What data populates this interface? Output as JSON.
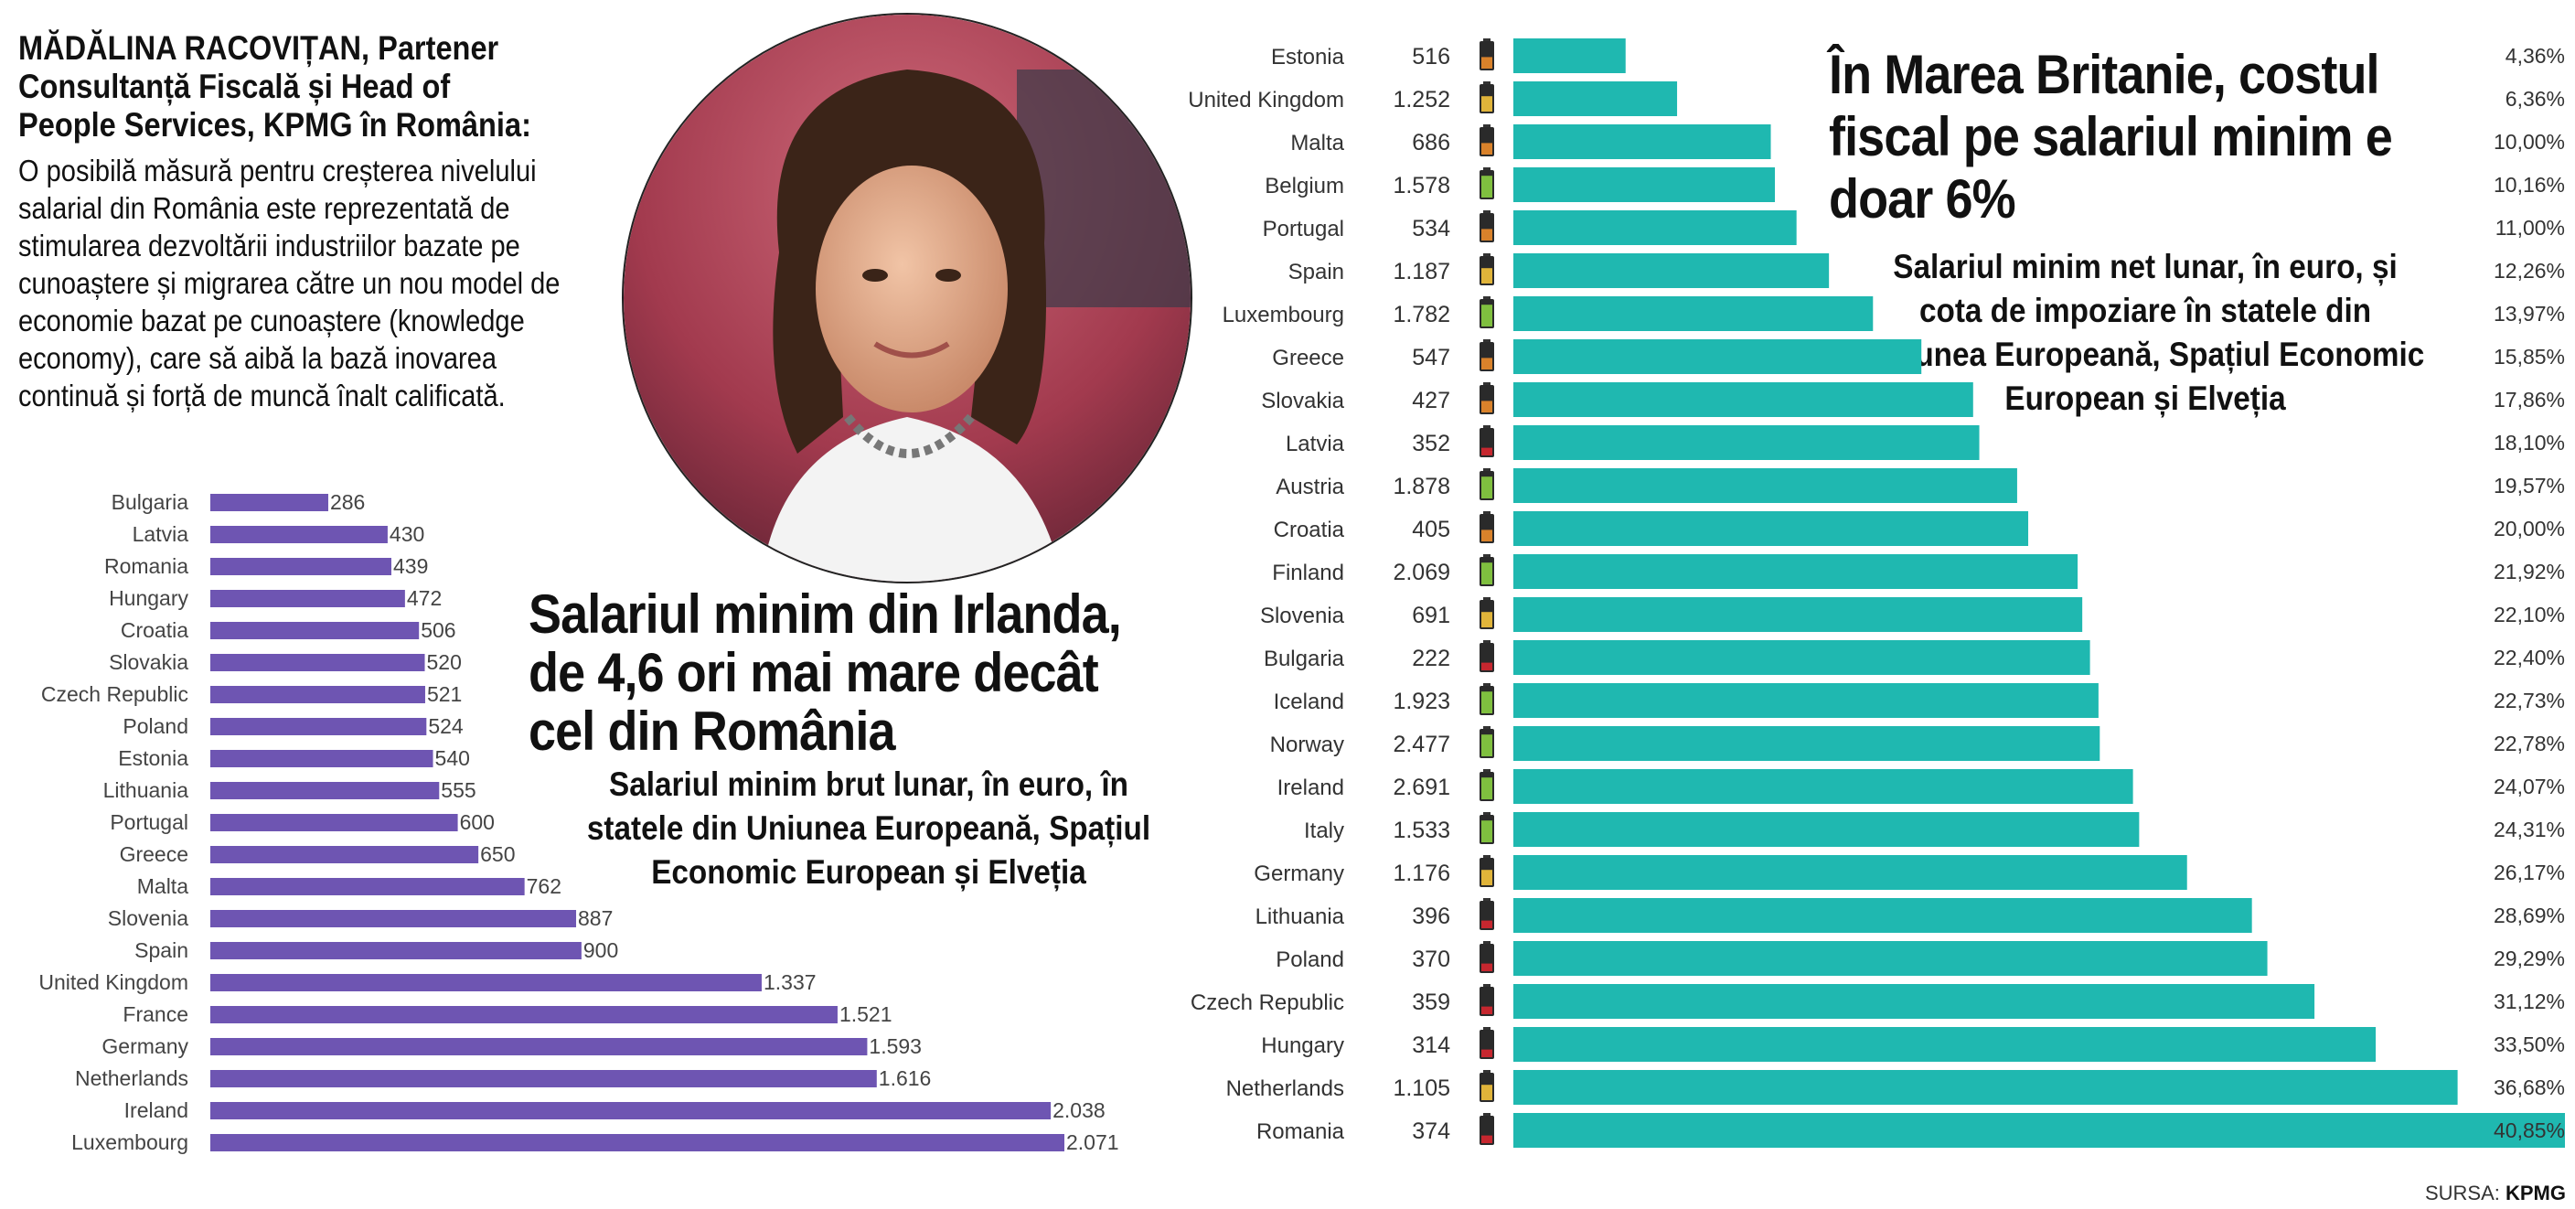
{
  "quote": {
    "author": "MĂDĂLINA RACOVIȚAN, Partener Consultanță Fiscală și Head of People Services, KPMG în România:",
    "text": "O posibilă măsură pentru creșterea nivelului salarial din România este reprezentată de stimularea dezvoltării industriilor bazate pe cunoaștere și migrarea către un nou model de economie bazat pe cunoaștere (knowledge economy), care să aibă la bază inovarea continuă și forță de muncă înalt calificată."
  },
  "source": {
    "label": "SURSA:",
    "name": "KPMG"
  },
  "colors": {
    "left_bar": "#6e55b2",
    "right_bar": "#1fb8b0",
    "battery_green": "#7fbf3f",
    "battery_yellow": "#e0b43a",
    "battery_orange": "#d9822b",
    "battery_red": "#c6272f",
    "highlight_pct": "#6e4aa8"
  },
  "chart_data": [
    {
      "type": "bar",
      "orientation": "horizontal",
      "title": "Salariul minim din Irlanda, de 4,6 ori mai mare decât cel din România",
      "subtitle": "Salariul minim brut lunar, în euro, în statele din Uniunea Europeană, Spațiul Economic European și Elveția",
      "categories": [
        "Bulgaria",
        "Latvia",
        "Romania",
        "Hungary",
        "Croatia",
        "Slovakia",
        "Czech Republic",
        "Poland",
        "Estonia",
        "Lithuania",
        "Portugal",
        "Greece",
        "Malta",
        "Slovenia",
        "Spain",
        "United Kingdom",
        "France",
        "Germany",
        "Netherlands",
        "Ireland",
        "Luxembourg"
      ],
      "values": [
        286,
        430,
        439,
        472,
        506,
        520,
        521,
        524,
        540,
        555,
        600,
        650,
        762,
        887,
        900,
        1337,
        1521,
        1593,
        1616,
        2038,
        2071
      ],
      "value_labels": [
        "286",
        "430",
        "439",
        "472",
        "506",
        "520",
        "521",
        "524",
        "540",
        "555",
        "600",
        "650",
        "762",
        "887",
        "900",
        "1.337",
        "1.521",
        "1.593",
        "1.616",
        "2.038",
        "2.071"
      ],
      "xlim": [
        0,
        2071
      ],
      "grid": false
    },
    {
      "type": "bar",
      "orientation": "horizontal",
      "title": "În Marea Britanie, costul fiscal pe salariul minim e doar 6%",
      "subtitle": "Salariul minim net lunar, în euro, și cota de impoziare în statele din Uniunea Europeană, Spațiul Economic European și Elveția",
      "categories": [
        "Estonia",
        "United Kingdom",
        "Malta",
        "Belgium",
        "Portugal",
        "Spain",
        "Luxembourg",
        "Greece",
        "Slovakia",
        "Latvia",
        "Austria",
        "Croatia",
        "Finland",
        "Slovenia",
        "Bulgaria",
        "Iceland",
        "Norway",
        "Ireland",
        "Italy",
        "Germany",
        "Lithuania",
        "Poland",
        "Czech Republic",
        "Hungary",
        "Netherlands",
        "Romania"
      ],
      "net_salary": [
        "516",
        "1.252",
        "686",
        "1.578",
        "534",
        "1.187",
        "1.782",
        "547",
        "427",
        "352",
        "1.878",
        "405",
        "2.069",
        "691",
        "222",
        "1.923",
        "2.477",
        "2.691",
        "1.533",
        "1.176",
        "396",
        "370",
        "359",
        "314",
        "1.105",
        "374"
      ],
      "battery_level": [
        "orange",
        "yellow",
        "orange",
        "green",
        "orange",
        "yellow",
        "green",
        "orange",
        "orange",
        "red",
        "green",
        "orange",
        "green",
        "yellow",
        "red",
        "green",
        "green",
        "green",
        "green",
        "yellow",
        "red",
        "red",
        "red",
        "red",
        "yellow",
        "red"
      ],
      "values": [
        4.36,
        6.36,
        10.0,
        10.16,
        11.0,
        12.26,
        13.97,
        15.85,
        17.86,
        18.1,
        19.57,
        20.0,
        21.92,
        22.1,
        22.4,
        22.73,
        22.78,
        24.07,
        24.31,
        26.17,
        28.69,
        29.29,
        31.12,
        33.5,
        36.68,
        40.85
      ],
      "value_labels": [
        "4,36%",
        "6,36%",
        "10,00%",
        "10,16%",
        "11,00%",
        "12,26%",
        "13,97%",
        "15,85%",
        "17,86%",
        "18,10%",
        "19,57%",
        "20,00%",
        "21,92%",
        "22,10%",
        "22,40%",
        "22,73%",
        "22,78%",
        "24,07%",
        "24,31%",
        "26,17%",
        "28,69%",
        "29,29%",
        "31,12%",
        "33,50%",
        "36,68%",
        "40,85%"
      ],
      "xlim": [
        0,
        40.85
      ],
      "grid": false
    }
  ]
}
